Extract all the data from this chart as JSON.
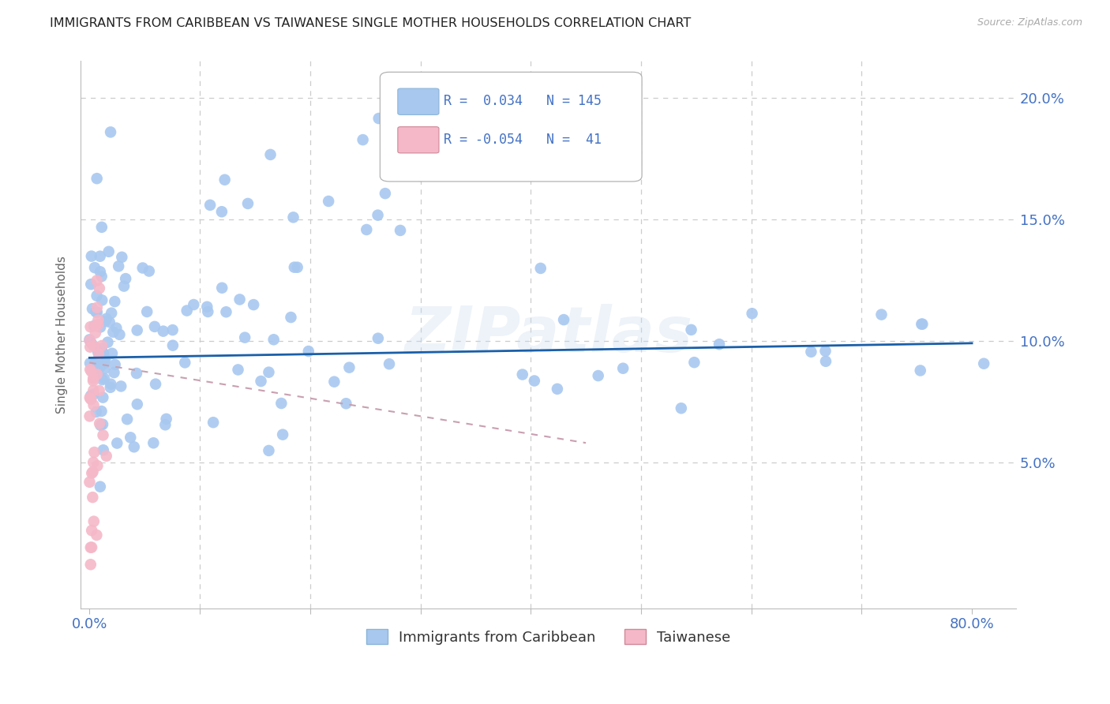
{
  "title": "IMMIGRANTS FROM CARIBBEAN VS TAIWANESE SINGLE MOTHER HOUSEHOLDS CORRELATION CHART",
  "source": "Source: ZipAtlas.com",
  "ylabel_label": "Single Mother Households",
  "watermark": "ZIPatlas",
  "x_ticks": [
    0.0,
    0.1,
    0.2,
    0.3,
    0.4,
    0.5,
    0.6,
    0.7,
    0.8
  ],
  "x_tick_labels": [
    "0.0%",
    "",
    "",
    "",
    "",
    "",
    "",
    "",
    "80.0%"
  ],
  "y_ticks": [
    0.0,
    0.05,
    0.1,
    0.15,
    0.2
  ],
  "y_tick_labels_right": [
    "",
    "5.0%",
    "10.0%",
    "15.0%",
    "20.0%"
  ],
  "xlim": [
    -0.008,
    0.84
  ],
  "ylim": [
    -0.01,
    0.215
  ],
  "blue_line_x": [
    0.0,
    0.8
  ],
  "blue_line_y": [
    0.093,
    0.099
  ],
  "pink_line_x": [
    0.0,
    0.45
  ],
  "pink_line_y": [
    0.091,
    0.058
  ],
  "scatter_color_blue": "#a8c8f0",
  "scatter_color_pink": "#f5b8c8",
  "line_color_blue": "#1a5fa8",
  "line_color_pink": "#c8a0b0",
  "grid_color": "#cccccc",
  "tick_color": "#4472c4",
  "title_color": "#222222",
  "background_color": "#ffffff",
  "legend_R1": "R =  0.034",
  "legend_N1": "N = 145",
  "legend_R2": "R = -0.054",
  "legend_N2": "N =  41",
  "legend_label1": "Immigrants from Caribbean",
  "legend_label2": "Taiwanese"
}
